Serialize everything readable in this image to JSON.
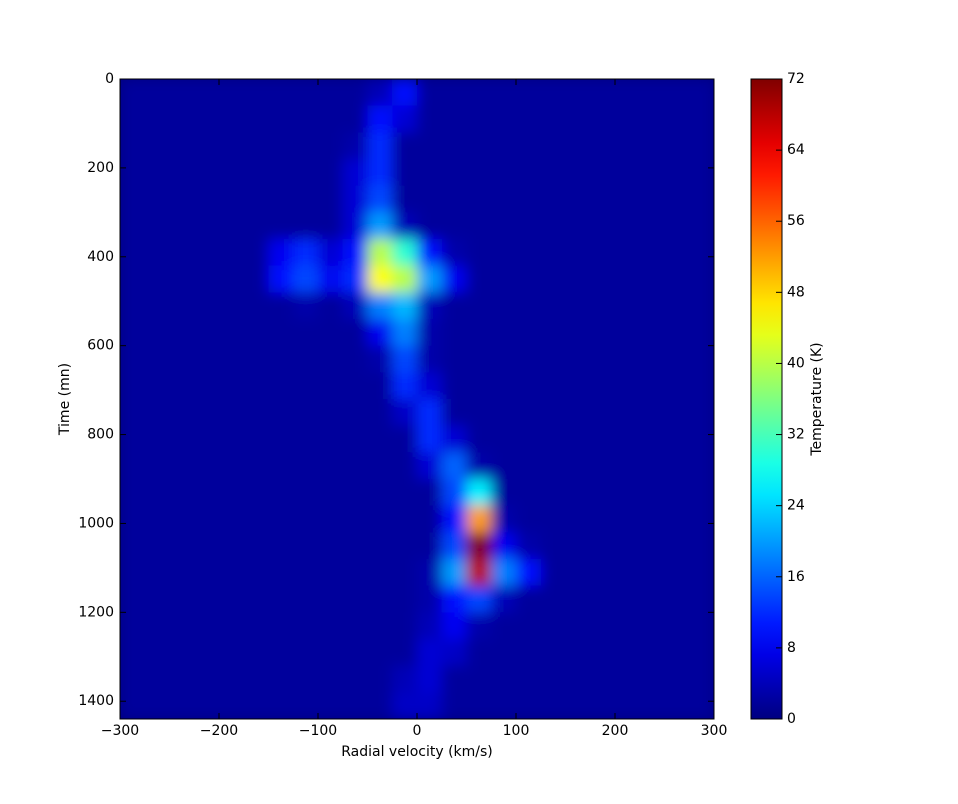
{
  "chart_data": {
    "type": "heatmap",
    "xlabel": "Radial velocity (km/s)",
    "ylabel": "Time (mn)",
    "colorbar_label": "Temperature (K)",
    "colormap": "jet",
    "xlim": [
      -300,
      300
    ],
    "ylim": [
      1440,
      0
    ],
    "xticks": [
      {
        "value": -300,
        "label": "−300"
      },
      {
        "value": -200,
        "label": "−200"
      },
      {
        "value": -100,
        "label": "−100"
      },
      0,
      100,
      200,
      300
    ],
    "yticks": [
      0,
      200,
      400,
      600,
      800,
      1000,
      1200,
      1400
    ],
    "clim": [
      0,
      72
    ],
    "cticks": [
      0,
      8,
      16,
      24,
      32,
      40,
      48,
      56,
      64,
      72
    ],
    "xbins": [
      -300,
      -275,
      -250,
      -225,
      -200,
      -175,
      -150,
      -125,
      -100,
      -75,
      -50,
      -25,
      0,
      25,
      50,
      75,
      100,
      125,
      150,
      175,
      200,
      225,
      250,
      275,
      300
    ],
    "ybins": [
      0,
      60,
      120,
      180,
      240,
      300,
      360,
      420,
      480,
      540,
      600,
      660,
      720,
      780,
      840,
      900,
      960,
      1020,
      1080,
      1140,
      1200,
      1260,
      1320,
      1380,
      1440
    ],
    "values": [
      [
        2,
        2,
        2,
        2,
        2,
        2,
        2,
        2,
        2,
        2,
        4,
        10,
        2,
        2,
        2,
        2,
        2,
        2,
        2,
        2,
        2,
        2,
        2,
        2
      ],
      [
        2,
        2,
        2,
        2,
        2,
        2,
        2,
        2,
        2,
        2,
        10,
        6,
        2,
        2,
        2,
        2,
        2,
        2,
        2,
        2,
        2,
        2,
        2,
        2
      ],
      [
        2,
        2,
        2,
        2,
        2,
        2,
        2,
        2,
        2,
        3,
        12,
        2,
        2,
        2,
        2,
        2,
        2,
        2,
        2,
        2,
        2,
        2,
        2,
        2
      ],
      [
        2,
        2,
        2,
        2,
        2,
        2,
        2,
        2,
        2,
        6,
        12,
        2,
        2,
        2,
        2,
        2,
        2,
        2,
        2,
        2,
        2,
        2,
        2,
        2
      ],
      [
        2,
        2,
        2,
        2,
        2,
        2,
        2,
        2,
        2,
        6,
        14,
        2,
        2,
        2,
        2,
        2,
        2,
        2,
        2,
        2,
        2,
        2,
        2,
        2
      ],
      [
        2,
        2,
        2,
        2,
        2,
        2,
        2,
        2,
        2,
        6,
        20,
        4,
        2,
        2,
        2,
        2,
        2,
        2,
        2,
        2,
        2,
        2,
        2,
        2
      ],
      [
        2,
        2,
        2,
        2,
        2,
        2,
        8,
        12,
        6,
        10,
        40,
        30,
        10,
        3,
        2,
        2,
        2,
        2,
        2,
        2,
        2,
        2,
        2,
        2
      ],
      [
        2,
        2,
        2,
        2,
        2,
        2,
        10,
        14,
        8,
        12,
        45,
        40,
        20,
        8,
        2,
        2,
        2,
        2,
        2,
        2,
        2,
        2,
        2,
        2
      ],
      [
        2,
        2,
        2,
        2,
        2,
        2,
        2,
        3,
        2,
        4,
        18,
        22,
        4,
        2,
        2,
        2,
        2,
        2,
        2,
        2,
        2,
        2,
        2,
        2
      ],
      [
        2,
        2,
        2,
        2,
        2,
        2,
        2,
        2,
        2,
        2,
        8,
        18,
        3,
        2,
        2,
        2,
        2,
        2,
        2,
        2,
        2,
        2,
        2,
        2
      ],
      [
        2,
        2,
        2,
        2,
        2,
        2,
        2,
        2,
        2,
        2,
        3,
        14,
        3,
        2,
        2,
        2,
        2,
        2,
        2,
        2,
        2,
        2,
        2,
        2
      ],
      [
        2,
        2,
        2,
        2,
        2,
        2,
        2,
        2,
        2,
        2,
        2,
        12,
        6,
        2,
        2,
        2,
        2,
        2,
        2,
        2,
        2,
        2,
        2,
        2
      ],
      [
        2,
        2,
        2,
        2,
        2,
        2,
        2,
        2,
        2,
        2,
        2,
        5,
        12,
        2,
        2,
        2,
        2,
        2,
        2,
        2,
        2,
        2,
        2,
        2
      ],
      [
        2,
        2,
        2,
        2,
        2,
        2,
        2,
        2,
        2,
        2,
        2,
        2,
        12,
        6,
        2,
        2,
        2,
        2,
        2,
        2,
        2,
        2,
        2,
        2
      ],
      [
        2,
        2,
        2,
        2,
        2,
        2,
        2,
        2,
        2,
        2,
        2,
        2,
        6,
        16,
        3,
        2,
        2,
        2,
        2,
        2,
        2,
        2,
        2,
        2
      ],
      [
        2,
        2,
        2,
        2,
        2,
        2,
        2,
        2,
        2,
        2,
        2,
        2,
        2,
        14,
        26,
        2,
        2,
        2,
        2,
        2,
        2,
        2,
        2,
        2
      ],
      [
        2,
        2,
        2,
        2,
        2,
        2,
        2,
        2,
        2,
        2,
        2,
        2,
        2,
        10,
        52,
        3,
        2,
        2,
        2,
        2,
        2,
        2,
        2,
        2
      ],
      [
        2,
        2,
        2,
        2,
        2,
        2,
        2,
        2,
        2,
        2,
        2,
        2,
        2,
        14,
        72,
        8,
        3,
        2,
        2,
        2,
        2,
        2,
        2,
        2
      ],
      [
        2,
        2,
        2,
        2,
        2,
        2,
        2,
        2,
        2,
        2,
        2,
        2,
        3,
        20,
        68,
        18,
        10,
        2,
        2,
        2,
        2,
        2,
        2,
        2
      ],
      [
        2,
        2,
        2,
        2,
        2,
        2,
        2,
        2,
        2,
        2,
        2,
        2,
        3,
        10,
        14,
        4,
        2,
        2,
        2,
        2,
        2,
        2,
        2,
        2
      ],
      [
        2,
        2,
        2,
        2,
        2,
        2,
        2,
        2,
        2,
        2,
        2,
        2,
        4,
        8,
        3,
        2,
        2,
        2,
        2,
        2,
        2,
        2,
        2,
        2
      ],
      [
        2,
        2,
        2,
        2,
        2,
        2,
        2,
        2,
        2,
        2,
        2,
        2,
        6,
        5,
        2,
        2,
        2,
        2,
        2,
        2,
        2,
        2,
        2,
        2
      ],
      [
        2,
        2,
        2,
        2,
        2,
        2,
        2,
        2,
        2,
        2,
        2,
        4,
        6,
        2,
        2,
        2,
        2,
        2,
        2,
        2,
        2,
        2,
        2,
        2
      ],
      [
        2,
        2,
        2,
        2,
        2,
        2,
        2,
        2,
        2,
        2,
        2,
        5,
        5,
        2,
        2,
        2,
        2,
        2,
        2,
        2,
        2,
        2,
        2,
        2
      ]
    ]
  }
}
